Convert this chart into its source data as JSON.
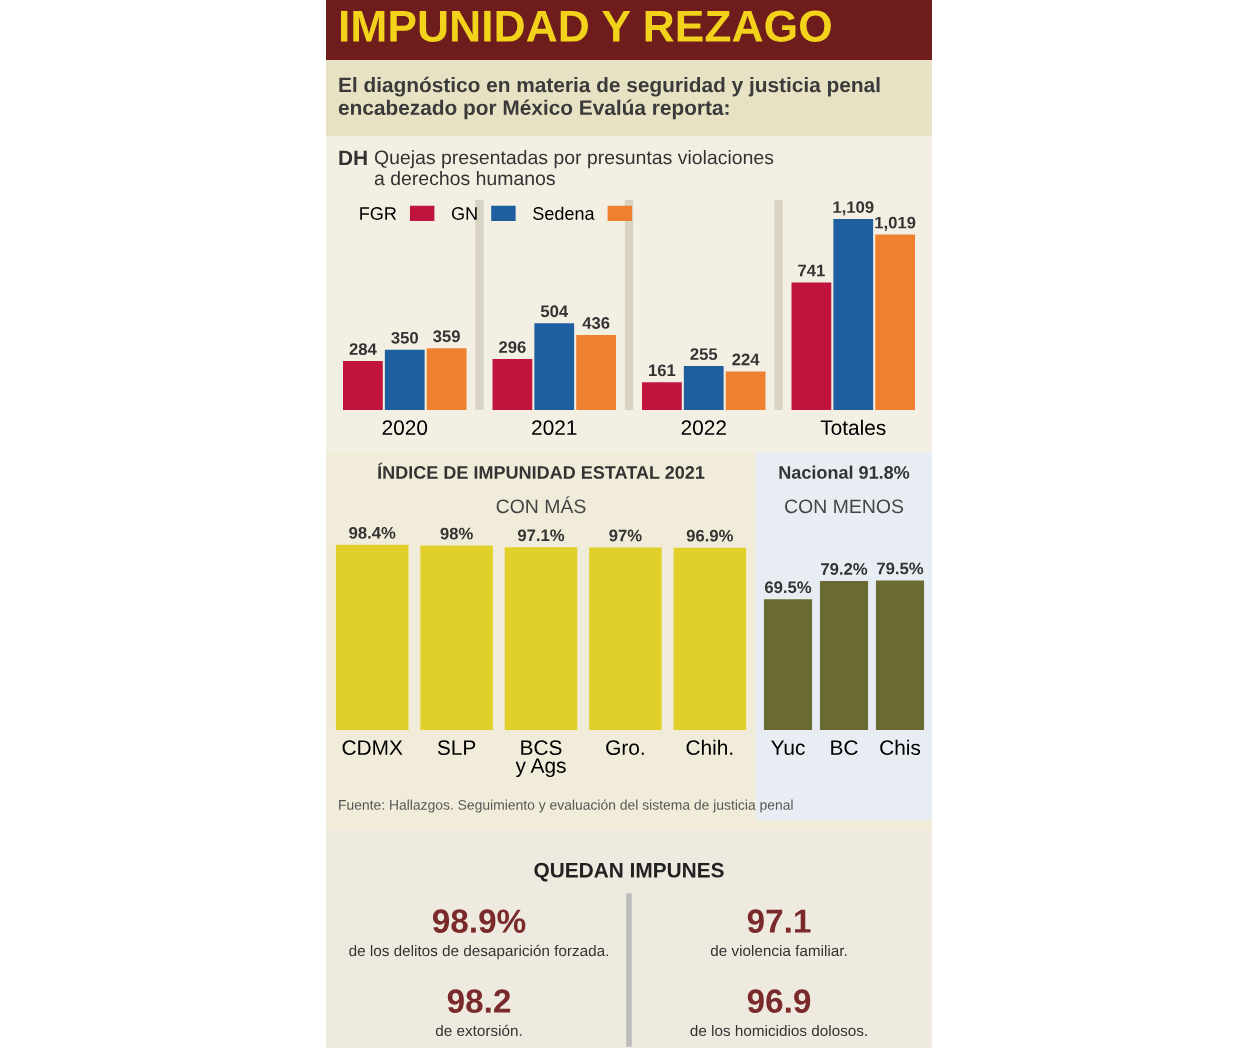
{
  "chart_data": [
    {
      "type": "bar",
      "title": "IMPUNIDAD Y REZAGO",
      "subtitle": "El diagnóstico en materia de seguridad y justicia penal\nencabezado por México Evalúa reporta:",
      "annotations": [
        "DH",
        "Quejas presentadas por presuntas violaciones\na derechos humanos"
      ],
      "categories": [
        "2020",
        "2021",
        "2022",
        "Totales"
      ],
      "series": [
        {
          "name": "FGR",
          "color": "#c0143c",
          "values": [
            284,
            296,
            161,
            741
          ],
          "value_labels": [
            "284",
            "296",
            "161",
            "741"
          ]
        },
        {
          "name": "GN",
          "color": "#1f5fa0",
          "values": [
            350,
            504,
            255,
            1109
          ],
          "value_labels": [
            "350",
            "504",
            "255",
            "1,109"
          ]
        },
        {
          "name": "Sedena",
          "color": "#ee8030",
          "values": [
            359,
            436,
            224,
            1019
          ],
          "value_labels": [
            "359",
            "436",
            "224",
            "1,019"
          ]
        }
      ],
      "legend": "top left",
      "grid": false
    },
    {
      "type": "bar",
      "title": "ÍNDICE DE IMPUNIDAD ESTATAL 2021",
      "subtitle": "CON MÁS",
      "categories": [
        "CDMX",
        "SLP",
        "BCS\ny Ags",
        "Gro.",
        "Chih."
      ],
      "values": [
        98.4,
        98,
        97.1,
        97,
        96.9
      ],
      "color": "#e2d02a",
      "value_labels": [
        "98.4%",
        "98%",
        "97.1%",
        "97%",
        "96.9%"
      ],
      "annotations": [
        "Fuente: Hallazgos. Seguimiento y evaluación del sistema de justicia penal"
      ],
      "grid": false
    },
    {
      "type": "bar",
      "title": "Nacional 91.8%",
      "subtitle": "CON MENOS",
      "categories": [
        "Yuc",
        "BC",
        "Chis"
      ],
      "values": [
        69.5,
        79.2,
        79.5
      ],
      "color": "#6b6a32",
      "value_labels": [
        "69.5%",
        "79.2%",
        "79.5%"
      ],
      "grid": false
    },
    {
      "type": "other",
      "title": "QUEDAN IMPUNES",
      "annotations": [
        "98.9%",
        "de los delitos de desaparición forzada.",
        "97.1",
        "de violencia familiar.",
        "98.2",
        "de extorsión.",
        "96.9",
        "de los homicidios dolosos."
      ]
    }
  ]
}
